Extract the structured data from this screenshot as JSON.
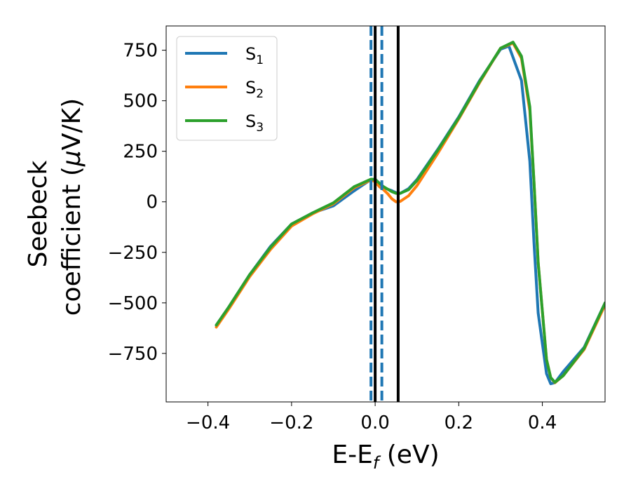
{
  "chart_data": {
    "type": "line",
    "xlabel": {
      "main": "E-E",
      "sub": "f",
      "unit": " (eV)"
    },
    "ylabel": {
      "line1": "Seebeck",
      "line2": "coefficient  (",
      "mu": "μ",
      "line2_end": "V/K)"
    },
    "xlim": [
      -0.5,
      0.55
    ],
    "ylim": [
      -990,
      870
    ],
    "xticks": [
      -0.4,
      -0.2,
      0.0,
      0.2,
      0.4
    ],
    "xtick_labels": [
      "−0.4",
      "−0.2",
      "0.0",
      "0.2",
      "0.4"
    ],
    "yticks": [
      -750,
      -500,
      -250,
      0,
      250,
      500,
      750
    ],
    "ytick_labels": [
      "−750",
      "−500",
      "−250",
      "0",
      "250",
      "500",
      "750"
    ],
    "grid": false,
    "legend_position": "top-left",
    "series": [
      {
        "name": "S",
        "sub": "1",
        "color": "#1f77b4",
        "x": [
          -0.38,
          -0.35,
          -0.3,
          -0.25,
          -0.2,
          -0.15,
          -0.1,
          -0.05,
          -0.01,
          0.0,
          0.02,
          0.04,
          0.05,
          0.06,
          0.08,
          0.1,
          0.15,
          0.2,
          0.25,
          0.3,
          0.32,
          0.35,
          0.37,
          0.38,
          0.39,
          0.41,
          0.42,
          0.43,
          0.45,
          0.5,
          0.55
        ],
        "y": [
          -610,
          -520,
          -360,
          -220,
          -110,
          -55,
          -20,
          55,
          110,
          112,
          70,
          55,
          45,
          42,
          65,
          110,
          260,
          420,
          600,
          755,
          770,
          600,
          200,
          -200,
          -550,
          -850,
          -900,
          -895,
          -840,
          -720,
          -500
        ]
      },
      {
        "name": "S",
        "sub": "2",
        "color": "#ff7f0e",
        "x": [
          -0.38,
          -0.35,
          -0.3,
          -0.25,
          -0.2,
          -0.15,
          -0.1,
          -0.05,
          -0.01,
          0.0,
          0.01,
          0.02,
          0.03,
          0.04,
          0.05,
          0.06,
          0.08,
          0.1,
          0.15,
          0.2,
          0.25,
          0.3,
          0.33,
          0.35,
          0.37,
          0.38,
          0.39,
          0.41,
          0.42,
          0.43,
          0.45,
          0.5,
          0.55
        ],
        "y": [
          -620,
          -530,
          -370,
          -235,
          -120,
          -60,
          -10,
          70,
          108,
          100,
          75,
          60,
          40,
          15,
          0,
          2,
          30,
          80,
          240,
          410,
          590,
          760,
          785,
          710,
          450,
          100,
          -300,
          -780,
          -870,
          -895,
          -860,
          -730,
          -510
        ]
      },
      {
        "name": "S",
        "sub": "3",
        "color": "#2ca02c",
        "x": [
          -0.38,
          -0.35,
          -0.3,
          -0.25,
          -0.2,
          -0.15,
          -0.1,
          -0.05,
          -0.01,
          0.0,
          0.02,
          0.04,
          0.05,
          0.06,
          0.08,
          0.1,
          0.15,
          0.2,
          0.25,
          0.3,
          0.33,
          0.35,
          0.37,
          0.38,
          0.39,
          0.41,
          0.42,
          0.43,
          0.45,
          0.5,
          0.55
        ],
        "y": [
          -610,
          -520,
          -360,
          -225,
          -110,
          -55,
          -5,
          75,
          112,
          110,
          75,
          50,
          42,
          42,
          60,
          105,
          255,
          415,
          595,
          760,
          790,
          720,
          470,
          100,
          -300,
          -780,
          -870,
          -893,
          -860,
          -725,
          -500
        ]
      }
    ],
    "vlines": [
      {
        "x": -0.01,
        "color": "#1f77b4",
        "style": "dashed"
      },
      {
        "x": 0.016,
        "color": "#1f77b4",
        "style": "dashed"
      },
      {
        "x": 0.0,
        "color": "#000000",
        "style": "solid"
      },
      {
        "x": 0.055,
        "color": "#000000",
        "style": "solid"
      }
    ]
  }
}
